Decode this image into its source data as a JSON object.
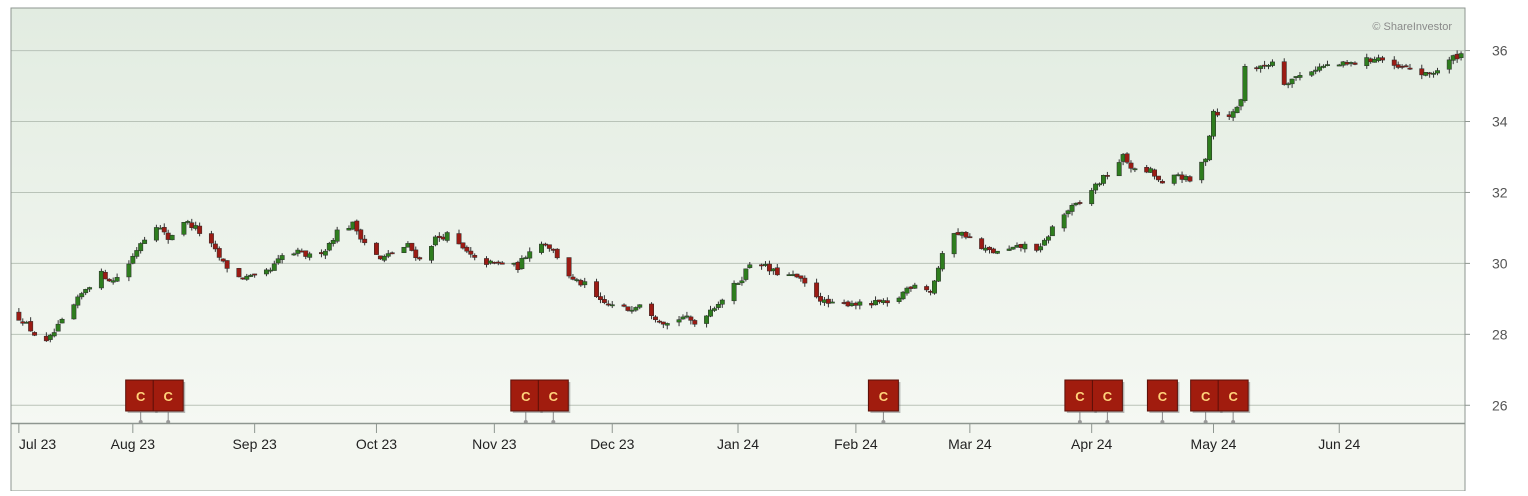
{
  "watermark": "© ShareInvestor",
  "chart_data": {
    "type": "candlestick",
    "ylim": [
      25.5,
      37.2
    ],
    "yticks": [
      26,
      28,
      30,
      32,
      34,
      36
    ],
    "x_range": [
      "2023-07-01",
      "2024-07-05"
    ],
    "xticks": [
      {
        "label": "Jul 23",
        "date": "2023-07-03"
      },
      {
        "label": "Aug 23",
        "date": "2023-08-01"
      },
      {
        "label": "Sep 23",
        "date": "2023-09-01"
      },
      {
        "label": "Oct 23",
        "date": "2023-10-02"
      },
      {
        "label": "Nov 23",
        "date": "2023-11-01"
      },
      {
        "label": "Dec 23",
        "date": "2023-12-01"
      },
      {
        "label": "Jan 24",
        "date": "2024-01-02"
      },
      {
        "label": "Feb 24",
        "date": "2024-02-01"
      },
      {
        "label": "Mar 24",
        "date": "2024-03-01"
      },
      {
        "label": "Apr 24",
        "date": "2024-04-01"
      },
      {
        "label": "May 24",
        "date": "2024-05-02"
      },
      {
        "label": "Jun 24",
        "date": "2024-06-03"
      }
    ],
    "grid": "horizontal",
    "up_color": "#2e7d1e",
    "down_color": "#9b1b14",
    "price_path": [
      [
        "2023-07-01",
        28.6
      ],
      [
        "2023-07-04",
        28.4
      ],
      [
        "2023-07-07",
        28.0
      ],
      [
        "2023-07-10",
        27.75
      ],
      [
        "2023-07-13",
        28.2
      ],
      [
        "2023-07-17",
        28.8
      ],
      [
        "2023-07-20",
        29.3
      ],
      [
        "2023-07-24",
        29.7
      ],
      [
        "2023-07-27",
        29.5
      ],
      [
        "2023-07-31",
        30.0
      ],
      [
        "2023-08-03",
        30.6
      ],
      [
        "2023-08-07",
        31.1
      ],
      [
        "2023-08-10",
        30.7
      ],
      [
        "2023-08-14",
        31.2
      ],
      [
        "2023-08-17",
        31.0
      ],
      [
        "2023-08-21",
        30.5
      ],
      [
        "2023-08-24",
        30.0
      ],
      [
        "2023-08-28",
        29.6
      ],
      [
        "2023-09-01",
        29.6
      ],
      [
        "2023-09-05",
        29.8
      ],
      [
        "2023-09-08",
        30.2
      ],
      [
        "2023-09-12",
        30.3
      ],
      [
        "2023-09-15",
        30.2
      ],
      [
        "2023-09-19",
        30.4
      ],
      [
        "2023-09-22",
        30.9
      ],
      [
        "2023-09-26",
        31.1
      ],
      [
        "2023-09-29",
        30.6
      ],
      [
        "2023-10-03",
        30.1
      ],
      [
        "2023-10-06",
        30.3
      ],
      [
        "2023-10-10",
        30.5
      ],
      [
        "2023-10-13",
        30.1
      ],
      [
        "2023-10-17",
        30.7
      ],
      [
        "2023-10-20",
        30.8
      ],
      [
        "2023-10-24",
        30.4
      ],
      [
        "2023-10-27",
        30.1
      ],
      [
        "2023-10-31",
        30.0
      ],
      [
        "2023-11-03",
        30.0
      ],
      [
        "2023-11-07",
        29.9
      ],
      [
        "2023-11-10",
        30.4
      ],
      [
        "2023-11-14",
        30.6
      ],
      [
        "2023-11-17",
        30.2
      ],
      [
        "2023-11-21",
        29.5
      ],
      [
        "2023-11-24",
        29.4
      ],
      [
        "2023-11-28",
        28.9
      ],
      [
        "2023-12-01",
        28.8
      ],
      [
        "2023-12-05",
        28.7
      ],
      [
        "2023-12-08",
        28.9
      ],
      [
        "2023-12-12",
        28.5
      ],
      [
        "2023-12-15",
        28.3
      ],
      [
        "2023-12-19",
        28.5
      ],
      [
        "2023-12-22",
        28.3
      ],
      [
        "2023-12-26",
        28.7
      ],
      [
        "2023-12-29",
        29.0
      ],
      [
        "2024-01-03",
        29.6
      ],
      [
        "2024-01-06",
        30.2
      ],
      [
        "2024-01-10",
        29.8
      ],
      [
        "2024-01-13",
        29.7
      ],
      [
        "2024-01-17",
        29.6
      ],
      [
        "2024-01-20",
        29.3
      ],
      [
        "2024-01-24",
        28.9
      ],
      [
        "2024-01-27",
        28.8
      ],
      [
        "2024-01-31",
        28.9
      ],
      [
        "2024-02-03",
        28.8
      ],
      [
        "2024-02-07",
        28.9
      ],
      [
        "2024-02-10",
        28.8
      ],
      [
        "2024-02-14",
        29.3
      ],
      [
        "2024-02-17",
        29.5
      ],
      [
        "2024-02-20",
        29.2
      ],
      [
        "2024-02-23",
        30.2
      ],
      [
        "2024-02-26",
        30.9
      ],
      [
        "2024-02-29",
        30.8
      ],
      [
        "2024-03-04",
        30.4
      ],
      [
        "2024-03-08",
        30.3
      ],
      [
        "2024-03-12",
        30.4
      ],
      [
        "2024-03-15",
        30.5
      ],
      [
        "2024-03-19",
        30.4
      ],
      [
        "2024-03-22",
        31.0
      ],
      [
        "2024-03-26",
        31.5
      ],
      [
        "2024-03-29",
        31.7
      ],
      [
        "2024-04-02",
        32.2
      ],
      [
        "2024-04-05",
        32.5
      ],
      [
        "2024-04-09",
        33.0
      ],
      [
        "2024-04-12",
        32.6
      ],
      [
        "2024-04-16",
        32.6
      ],
      [
        "2024-04-19",
        32.2
      ],
      [
        "2024-04-23",
        32.5
      ],
      [
        "2024-04-26",
        32.3
      ],
      [
        "2024-04-30",
        33.0
      ],
      [
        "2024-05-02",
        34.3
      ],
      [
        "2024-05-06",
        34.1
      ],
      [
        "2024-05-09",
        34.6
      ],
      [
        "2024-05-10",
        35.6
      ],
      [
        "2024-05-14",
        35.5
      ],
      [
        "2024-05-17",
        35.7
      ],
      [
        "2024-05-20",
        35.1
      ],
      [
        "2024-05-24",
        35.3
      ],
      [
        "2024-05-28",
        35.5
      ],
      [
        "2024-06-01",
        35.6
      ],
      [
        "2024-06-05",
        35.6
      ],
      [
        "2024-06-09",
        35.7
      ],
      [
        "2024-06-13",
        35.8
      ],
      [
        "2024-06-17",
        35.5
      ],
      [
        "2024-06-21",
        35.5
      ],
      [
        "2024-06-25",
        35.3
      ],
      [
        "2024-06-29",
        35.5
      ],
      [
        "2024-07-02",
        35.8
      ],
      [
        "2024-07-04",
        35.9
      ]
    ],
    "event_marker_label": "C",
    "event_markers": [
      "2023-08-03",
      "2023-08-10",
      "2023-11-09",
      "2023-11-16",
      "2024-02-08",
      "2024-03-29",
      "2024-04-05",
      "2024-04-19",
      "2024-04-30",
      "2024-05-07"
    ]
  }
}
